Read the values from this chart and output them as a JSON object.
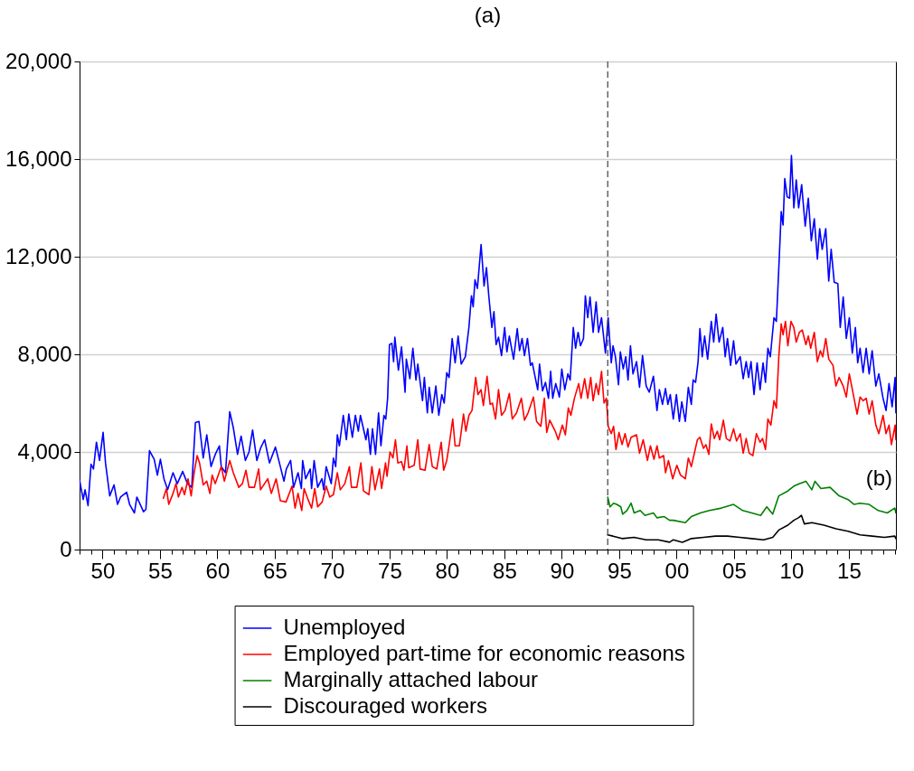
{
  "chart_data": {
    "type": "line",
    "title": "(a)",
    "series": [
      {
        "name": "Unemployed",
        "color": "#0000ff",
        "x": [
          1948.0,
          1948.32,
          1948.48,
          1948.74,
          1949.0,
          1949.21,
          1949.47,
          1949.74,
          1950.05,
          1950.26,
          1950.63,
          1951.0,
          1951.31,
          1951.57,
          1952.1,
          1952.36,
          1952.78,
          1952.99,
          1953.57,
          1953.78,
          1954.09,
          1954.5,
          1954.78,
          1955.04,
          1955.35,
          1955.67,
          1956.14,
          1956.51,
          1956.98,
          1957.4,
          1957.77,
          1958.09,
          1958.4,
          1958.77,
          1959.08,
          1959.45,
          1959.82,
          1960.18,
          1960.34,
          1960.71,
          1961.08,
          1961.39,
          1961.76,
          1962.07,
          1962.44,
          1962.76,
          1963.07,
          1963.44,
          1963.76,
          1964.12,
          1964.54,
          1965.06,
          1965.54,
          1965.8,
          1966.01,
          1966.38,
          1966.64,
          1967.03,
          1967.32,
          1967.43,
          1967.69,
          1968.09,
          1968.21,
          1968.43,
          1968.74,
          1969.11,
          1969.27,
          1969.48,
          1969.92,
          1970.11,
          1970.31,
          1970.45,
          1970.63,
          1970.97,
          1971.24,
          1971.45,
          1971.76,
          1972.02,
          1972.28,
          1972.46,
          1972.94,
          1973.1,
          1973.33,
          1973.51,
          1973.78,
          1974.04,
          1974.25,
          1974.51,
          1974.67,
          1974.83,
          1974.99,
          1975.2,
          1975.35,
          1975.46,
          1975.77,
          1976.04,
          1976.35,
          1976.46,
          1976.77,
          1977.03,
          1977.3,
          1977.46,
          1977.87,
          1978.03,
          1978.29,
          1978.45,
          1978.72,
          1979.03,
          1979.29,
          1979.55,
          1979.76,
          1979.98,
          1980.18,
          1980.45,
          1980.71,
          1980.97,
          1981.24,
          1981.6,
          1981.91,
          1982.13,
          1982.28,
          1982.44,
          1982.65,
          1982.97,
          1983.23,
          1983.44,
          1983.65,
          1983.91,
          1984.09,
          1984.28,
          1984.49,
          1984.75,
          1985.02,
          1985.22,
          1985.43,
          1985.8,
          1986.12,
          1986.32,
          1986.54,
          1986.75,
          1987.01,
          1987.27,
          1987.43,
          1987.9,
          1988.06,
          1988.32,
          1988.58,
          1988.84,
          1989.03,
          1989.21,
          1989.47,
          1989.79,
          1990.0,
          1990.26,
          1990.53,
          1990.73,
          1991.0,
          1991.2,
          1991.42,
          1991.63,
          1991.89,
          1992.05,
          1992.26,
          1992.46,
          1992.73,
          1992.99,
          1993.2,
          1993.46,
          1993.8,
          1994.04,
          1994.31,
          1994.46,
          1994.67,
          1994.94,
          1995.1,
          1995.35,
          1995.57,
          1995.77,
          1995.98,
          1996.2,
          1996.51,
          1996.77,
          1997.03,
          1997.35,
          1997.62,
          1997.98,
          1998.29,
          1998.5,
          1998.77,
          1999.03,
          1999.24,
          1999.45,
          1999.71,
          1999.98,
          2000.24,
          2000.45,
          2000.76,
          2001.02,
          2001.28,
          2001.44,
          2001.65,
          2001.87,
          2002.03,
          2002.23,
          2002.44,
          2002.7,
          2003.02,
          2003.23,
          2003.44,
          2003.7,
          2004.02,
          2004.23,
          2004.43,
          2004.7,
          2004.96,
          2005.17,
          2005.54,
          2005.8,
          2006.06,
          2006.27,
          2006.48,
          2006.74,
          2007.01,
          2007.27,
          2007.53,
          2007.74,
          2007.95,
          2008.16,
          2008.48,
          2008.69,
          2008.95,
          2009.11,
          2009.27,
          2009.42,
          2009.63,
          2009.84,
          2010.0,
          2010.21,
          2010.42,
          2010.63,
          2010.89,
          2011.2,
          2011.47,
          2011.73,
          2011.99,
          2012.26,
          2012.46,
          2012.68,
          2012.99,
          2013.25,
          2013.46,
          2013.73,
          2014.04,
          2014.25,
          2014.51,
          2014.78,
          2015.04,
          2015.3,
          2015.57,
          2015.77,
          2015.98,
          2016.24,
          2016.51,
          2016.77,
          2017.03,
          2017.35,
          2017.61,
          2017.98,
          2018.24,
          2018.5,
          2018.77,
          2019.03,
          2019.1
        ],
        "values": [
          2850,
          2050,
          2450,
          1800,
          3500,
          3300,
          4400,
          3650,
          4800,
          3550,
          2200,
          2650,
          1850,
          2150,
          2350,
          1850,
          1500,
          2150,
          1550,
          1650,
          4050,
          3700,
          3050,
          3700,
          2900,
          2450,
          3150,
          2700,
          3200,
          2700,
          2550,
          5200,
          5250,
          3750,
          4700,
          3400,
          3900,
          4250,
          3400,
          3150,
          5650,
          5000,
          3900,
          4650,
          3650,
          4000,
          4900,
          3650,
          4150,
          4500,
          3550,
          4200,
          3300,
          2800,
          3300,
          3650,
          2550,
          3150,
          2500,
          3650,
          2900,
          3300,
          2500,
          3650,
          2550,
          2900,
          2450,
          3400,
          2700,
          3750,
          3400,
          4700,
          4250,
          5500,
          4500,
          5550,
          4600,
          5500,
          4850,
          5500,
          4500,
          4950,
          3900,
          4950,
          3900,
          5600,
          4250,
          5500,
          5350,
          6200,
          8400,
          8450,
          7700,
          8700,
          7350,
          8300,
          6450,
          7800,
          7000,
          8250,
          6950,
          7600,
          6100,
          7050,
          5600,
          6650,
          5600,
          6700,
          5500,
          6350,
          6000,
          7250,
          7050,
          8650,
          7650,
          8750,
          7600,
          7900,
          9100,
          10400,
          9950,
          11050,
          10700,
          12500,
          10800,
          11550,
          10350,
          9100,
          9750,
          8400,
          8700,
          7950,
          9100,
          8100,
          8750,
          7800,
          9050,
          8150,
          8650,
          7950,
          8650,
          7550,
          7650,
          6550,
          7600,
          6500,
          6850,
          6200,
          7300,
          6200,
          6800,
          6250,
          7400,
          6550,
          7200,
          6950,
          9100,
          8250,
          8900,
          8350,
          8650,
          10400,
          9500,
          10350,
          8900,
          10150,
          8900,
          9500,
          8050,
          9500,
          7650,
          8350,
          7900,
          6750,
          8100,
          7400,
          7900,
          6950,
          8350,
          7200,
          7700,
          6650,
          7950,
          6700,
          6450,
          7100,
          5700,
          6550,
          5950,
          6600,
          5950,
          6350,
          5350,
          6350,
          5250,
          6050,
          5250,
          6650,
          5950,
          6950,
          6850,
          7700,
          9050,
          7900,
          8750,
          7800,
          9350,
          8500,
          9650,
          8500,
          9100,
          7900,
          8650,
          7550,
          8550,
          7600,
          7900,
          7000,
          7700,
          7050,
          7700,
          6350,
          7650,
          6550,
          7650,
          6850,
          8250,
          7900,
          9500,
          9350,
          12050,
          13850,
          13300,
          15200,
          14450,
          14400,
          16150,
          14000,
          15150,
          14000,
          14950,
          13250,
          14400,
          12650,
          13550,
          11900,
          13150,
          12300,
          13150,
          11000,
          12300,
          10950,
          10900,
          9100,
          10350,
          8650,
          9500,
          8050,
          9100,
          7650,
          8250,
          7250,
          8250,
          7200,
          8150,
          6700,
          7200,
          6200,
          5700,
          6800,
          5850,
          7050,
          5600
        ]
      },
      {
        "name": "Employed part-time for economic reasons",
        "color": "#ff0000",
        "x": [
          1955.3,
          1955.57,
          1955.77,
          1956.14,
          1956.4,
          1956.61,
          1956.93,
          1957.14,
          1957.45,
          1957.72,
          1957.98,
          1958.24,
          1958.45,
          1958.77,
          1959.08,
          1959.35,
          1959.55,
          1959.82,
          1960.34,
          1960.61,
          1961.08,
          1961.39,
          1961.87,
          1962.18,
          1962.49,
          1962.76,
          1963.23,
          1963.6,
          1963.76,
          1964.39,
          1964.7,
          1965.12,
          1965.49,
          1965.98,
          1966.51,
          1966.77,
          1967.03,
          1967.35,
          1967.56,
          1967.9,
          1968.21,
          1968.48,
          1968.74,
          1969.13,
          1969.48,
          1969.79,
          1970.11,
          1970.45,
          1970.71,
          1971.1,
          1971.5,
          1971.68,
          1972.15,
          1972.5,
          1972.73,
          1973.2,
          1973.46,
          1973.73,
          1974.12,
          1974.31,
          1974.65,
          1974.78,
          1975.04,
          1975.3,
          1975.51,
          1975.72,
          1976.04,
          1976.25,
          1976.51,
          1976.67,
          1977.14,
          1977.46,
          1977.66,
          1978.09,
          1978.45,
          1978.72,
          1979.11,
          1979.5,
          1979.71,
          1979.98,
          1980.18,
          1980.5,
          1980.71,
          1981.08,
          1981.44,
          1981.65,
          1981.91,
          1982.18,
          1982.5,
          1982.7,
          1982.97,
          1983.17,
          1983.49,
          1983.76,
          1983.96,
          1984.23,
          1984.49,
          1984.75,
          1985.06,
          1985.43,
          1985.69,
          1986.06,
          1986.48,
          1986.75,
          1987.06,
          1987.53,
          1987.8,
          1988.17,
          1988.48,
          1988.69,
          1988.95,
          1989.43,
          1989.69,
          1990.05,
          1990.31,
          1990.57,
          1990.79,
          1991.1,
          1991.47,
          1991.68,
          1991.99,
          1992.26,
          1992.52,
          1992.73,
          1992.99,
          1993.2,
          1993.46,
          1993.68,
          1993.88,
          1994.04,
          1994.31,
          1994.51,
          1994.72,
          1994.98,
          1995.25,
          1995.51,
          1995.77,
          1996.04,
          1996.51,
          1996.77,
          1997.09,
          1997.46,
          1997.72,
          1998.03,
          1998.29,
          1998.5,
          1998.87,
          1999.03,
          1999.29,
          1999.66,
          2000.02,
          2000.34,
          2000.76,
          2001.02,
          2001.28,
          2001.5,
          2001.81,
          2002.03,
          2002.34,
          2002.55,
          2002.81,
          2003.02,
          2003.28,
          2003.54,
          2003.75,
          2004.07,
          2004.33,
          2004.65,
          2004.96,
          2005.22,
          2005.54,
          2005.8,
          2006.06,
          2006.32,
          2006.64,
          2006.95,
          2007.27,
          2007.48,
          2007.74,
          2007.95,
          2008.21,
          2008.48,
          2008.69,
          2008.9,
          2009.11,
          2009.27,
          2009.48,
          2009.69,
          2009.96,
          2010.21,
          2010.42,
          2010.69,
          2010.94,
          2011.26,
          2011.47,
          2011.68,
          2011.99,
          2012.26,
          2012.52,
          2012.73,
          2012.99,
          2013.25,
          2013.62,
          2013.88,
          2014.15,
          2014.51,
          2014.78,
          2015.04,
          2015.35,
          2015.72,
          2015.98,
          2016.24,
          2016.51,
          2016.77,
          2017.03,
          2017.35,
          2017.61,
          2017.98,
          2018.24,
          2018.5,
          2018.71,
          2019.03,
          2019.1
        ],
        "values": [
          2100,
          2500,
          1850,
          2300,
          2700,
          2150,
          2550,
          2250,
          2900,
          2200,
          3150,
          3850,
          3550,
          2650,
          2800,
          2300,
          3050,
          2700,
          3400,
          2800,
          3650,
          3150,
          2550,
          2700,
          3250,
          2550,
          2550,
          3300,
          2450,
          2900,
          2300,
          2900,
          2000,
          1950,
          2600,
          1700,
          2300,
          1600,
          2500,
          2050,
          1700,
          2500,
          1750,
          1950,
          2600,
          2150,
          2250,
          3150,
          2450,
          2700,
          3400,
          2550,
          2550,
          3550,
          2400,
          2250,
          3400,
          2450,
          3300,
          2500,
          3550,
          3000,
          4000,
          3750,
          4500,
          3550,
          3600,
          3250,
          4250,
          3350,
          3450,
          4500,
          3300,
          3250,
          4300,
          3400,
          3300,
          4400,
          3250,
          3650,
          4250,
          5350,
          4250,
          4250,
          5550,
          4850,
          5500,
          5700,
          7050,
          6350,
          6550,
          5900,
          7100,
          5950,
          6000,
          5350,
          6550,
          5500,
          5700,
          6400,
          5350,
          5600,
          6200,
          5300,
          5600,
          6250,
          5250,
          5050,
          6200,
          4800,
          5300,
          4850,
          4500,
          5100,
          4700,
          5800,
          5500,
          6200,
          6800,
          6200,
          7000,
          6200,
          7050,
          6100,
          6800,
          6350,
          7300,
          6000,
          6200,
          5050,
          4750,
          5050,
          4100,
          4800,
          4300,
          4750,
          4200,
          4600,
          4700,
          3950,
          4500,
          3650,
          4250,
          3700,
          4250,
          3750,
          3850,
          3150,
          3650,
          2900,
          3450,
          3050,
          2900,
          3750,
          3400,
          3850,
          4500,
          4600,
          4150,
          4300,
          3900,
          5150,
          4550,
          4850,
          4500,
          5300,
          4550,
          4450,
          4950,
          4450,
          4750,
          3950,
          4550,
          3950,
          3850,
          4750,
          4400,
          4550,
          4100,
          5350,
          5100,
          6100,
          5800,
          7900,
          9250,
          8800,
          9350,
          8350,
          9350,
          9100,
          8500,
          8900,
          9000,
          8400,
          8750,
          8250,
          8900,
          7700,
          8150,
          7900,
          8650,
          7800,
          7550,
          6700,
          7050,
          6700,
          6250,
          7200,
          6450,
          5550,
          6250,
          6100,
          6200,
          5550,
          6100,
          5100,
          4750,
          5500,
          4750,
          5100,
          4300,
          5100,
          4500
        ]
      },
      {
        "name": "Marginally attached labour",
        "color": "#008000",
        "x": [
          1994.0,
          1994.2,
          1994.51,
          1994.78,
          1995.14,
          1995.3,
          1995.67,
          1996.04,
          1996.3,
          1996.83,
          1997.24,
          1997.98,
          1998.29,
          1998.92,
          1999.39,
          1999.71,
          2000.76,
          2001.28,
          2002.07,
          2002.86,
          2003.91,
          2004.96,
          2005.75,
          2006.54,
          2007.32,
          2007.85,
          2008.37,
          2008.9,
          2009.69,
          2010.21,
          2010.73,
          2011.26,
          2011.78,
          2012.05,
          2012.57,
          2013.36,
          2014.15,
          2014.93,
          2015.46,
          2015.98,
          2016.77,
          2017.56,
          2018.35,
          2019.0,
          2019.1
        ],
        "values": [
          2150,
          1750,
          1900,
          1850,
          1750,
          1450,
          1600,
          1900,
          1500,
          1600,
          1400,
          1500,
          1300,
          1350,
          1200,
          1200,
          1100,
          1350,
          1500,
          1600,
          1700,
          1850,
          1600,
          1500,
          1400,
          1750,
          1450,
          2200,
          2400,
          2600,
          2700,
          2800,
          2450,
          2800,
          2500,
          2550,
          2200,
          2050,
          1850,
          1900,
          1850,
          1600,
          1500,
          1700,
          1500
        ]
      },
      {
        "name": "Discouraged workers",
        "color": "#000000",
        "x": [
          1994.0,
          1994.46,
          1995.25,
          1996.3,
          1997.35,
          1998.4,
          1999.39,
          1999.71,
          2000.5,
          2001.28,
          2002.34,
          2003.39,
          2004.43,
          2005.49,
          2006.54,
          2007.58,
          2008.37,
          2008.9,
          2009.69,
          2010.21,
          2010.61,
          2010.87,
          2011.13,
          2011.78,
          2012.83,
          2013.88,
          2014.93,
          2015.98,
          2017.03,
          2018.09,
          2019.0,
          2019.1
        ],
        "values": [
          600,
          550,
          450,
          500,
          400,
          400,
          300,
          400,
          300,
          450,
          500,
          550,
          550,
          500,
          450,
          400,
          500,
          800,
          1000,
          1200,
          1300,
          1400,
          1050,
          1100,
          1000,
          850,
          750,
          600,
          550,
          500,
          550,
          450
        ]
      }
    ],
    "xlim": [
      1948,
      2019.1
    ],
    "xticks": [
      {
        "value": 1948,
        "label": null
      },
      {
        "value": 1949,
        "label": null
      },
      {
        "value": 1950,
        "label": "50"
      },
      {
        "value": 1951,
        "label": null
      },
      {
        "value": 1952,
        "label": null
      },
      {
        "value": 1953,
        "label": null
      },
      {
        "value": 1954,
        "label": null
      },
      {
        "value": 1955,
        "label": "55"
      },
      {
        "value": 1956,
        "label": null
      },
      {
        "value": 1957,
        "label": null
      },
      {
        "value": 1958,
        "label": null
      },
      {
        "value": 1959,
        "label": null
      },
      {
        "value": 1960,
        "label": "60"
      },
      {
        "value": 1961,
        "label": null
      },
      {
        "value": 1962,
        "label": null
      },
      {
        "value": 1963,
        "label": null
      },
      {
        "value": 1964,
        "label": null
      },
      {
        "value": 1965,
        "label": "65"
      },
      {
        "value": 1966,
        "label": null
      },
      {
        "value": 1967,
        "label": null
      },
      {
        "value": 1968,
        "label": null
      },
      {
        "value": 1969,
        "label": null
      },
      {
        "value": 1970,
        "label": "70"
      },
      {
        "value": 1971,
        "label": null
      },
      {
        "value": 1972,
        "label": null
      },
      {
        "value": 1973,
        "label": null
      },
      {
        "value": 1974,
        "label": null
      },
      {
        "value": 1975,
        "label": "75"
      },
      {
        "value": 1976,
        "label": null
      },
      {
        "value": 1977,
        "label": null
      },
      {
        "value": 1978,
        "label": null
      },
      {
        "value": 1979,
        "label": null
      },
      {
        "value": 1980,
        "label": "80"
      },
      {
        "value": 1981,
        "label": null
      },
      {
        "value": 1982,
        "label": null
      },
      {
        "value": 1983,
        "label": null
      },
      {
        "value": 1984,
        "label": null
      },
      {
        "value": 1985,
        "label": "85"
      },
      {
        "value": 1986,
        "label": null
      },
      {
        "value": 1987,
        "label": null
      },
      {
        "value": 1988,
        "label": null
      },
      {
        "value": 1989,
        "label": null
      },
      {
        "value": 1990,
        "label": "90"
      },
      {
        "value": 1991,
        "label": null
      },
      {
        "value": 1992,
        "label": null
      },
      {
        "value": 1993,
        "label": null
      },
      {
        "value": 1994,
        "label": null
      },
      {
        "value": 1995,
        "label": "95"
      },
      {
        "value": 1996,
        "label": null
      },
      {
        "value": 1997,
        "label": null
      },
      {
        "value": 1998,
        "label": null
      },
      {
        "value": 1999,
        "label": null
      },
      {
        "value": 2000,
        "label": "00"
      },
      {
        "value": 2001,
        "label": null
      },
      {
        "value": 2002,
        "label": null
      },
      {
        "value": 2003,
        "label": null
      },
      {
        "value": 2004,
        "label": null
      },
      {
        "value": 2005,
        "label": "05"
      },
      {
        "value": 2006,
        "label": null
      },
      {
        "value": 2007,
        "label": null
      },
      {
        "value": 2008,
        "label": null
      },
      {
        "value": 2009,
        "label": null
      },
      {
        "value": 2010,
        "label": "10"
      },
      {
        "value": 2011,
        "label": null
      },
      {
        "value": 2012,
        "label": null
      },
      {
        "value": 2013,
        "label": null
      },
      {
        "value": 2014,
        "label": null
      },
      {
        "value": 2015,
        "label": "15"
      },
      {
        "value": 2016,
        "label": null
      },
      {
        "value": 2017,
        "label": null
      },
      {
        "value": 2018,
        "label": null
      },
      {
        "value": 2019,
        "label": null
      }
    ],
    "ylim": [
      0,
      20000
    ],
    "yticks": [
      0,
      {
        "value": 4000,
        "label": "4,000"
      },
      {
        "value": 8000,
        "label": "8,000"
      },
      {
        "value": 12000,
        "label": "12,000"
      },
      {
        "value": 16000,
        "label": "16,000"
      },
      {
        "value": 20000,
        "label": "20,000"
      }
    ],
    "grid": "y",
    "legend": "bottom",
    "ref_lines": [
      {
        "axis": "x",
        "value": 1994,
        "color": "#404040",
        "line_style": "dashed"
      }
    ],
    "annotations": [
      "(b)"
    ]
  }
}
